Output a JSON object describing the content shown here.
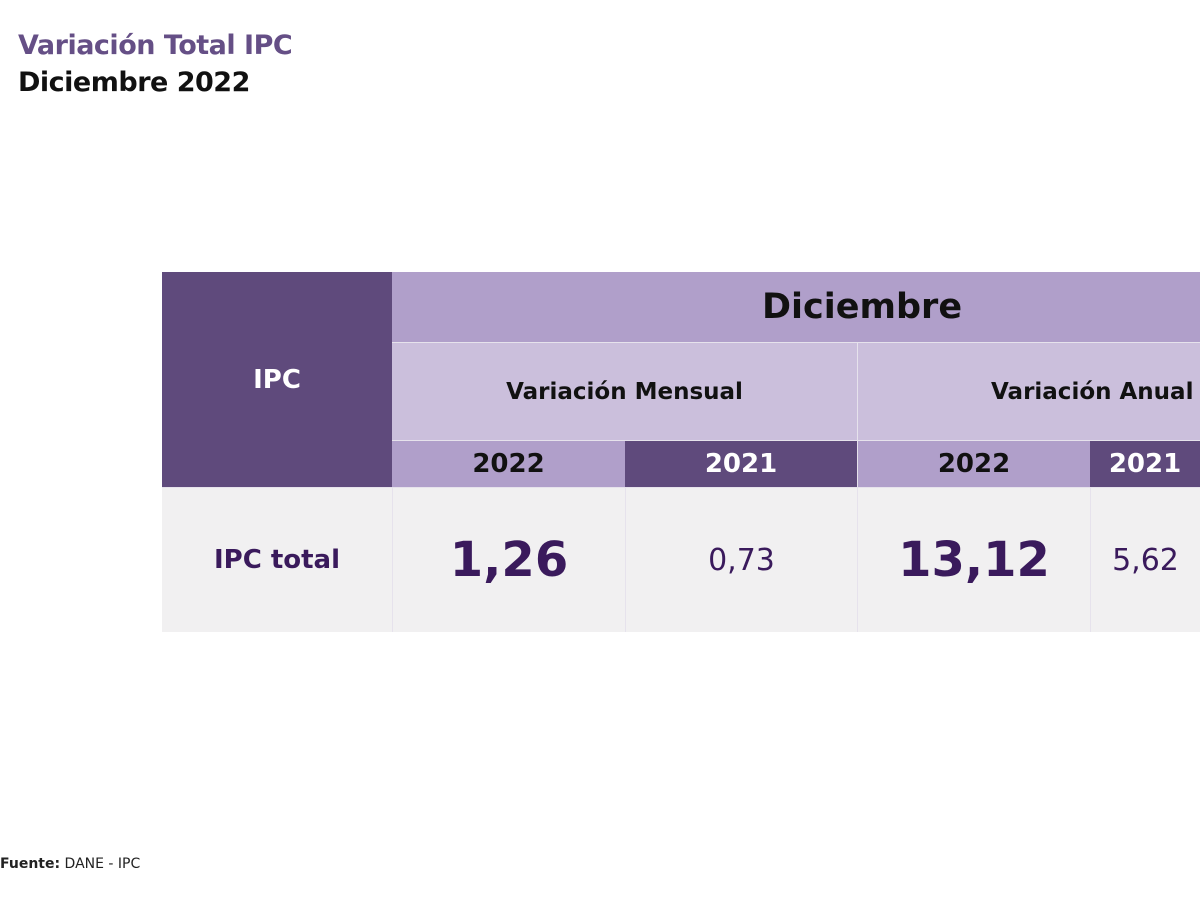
{
  "title": {
    "line1": "Variación Total IPC",
    "line2": "Diciembre 2022"
  },
  "table": {
    "row_header": "IPC",
    "group_header": "Diciembre",
    "sub_headers": [
      "Variación Mensual",
      "Variación Anual"
    ],
    "years": [
      "2022",
      "2021",
      "2022",
      "2021"
    ],
    "row": {
      "label": "IPC total",
      "values": [
        "1,26",
        "0,73",
        "13,12",
        "5,62"
      ]
    }
  },
  "source": {
    "label": "Fuente:",
    "text": "DANE - IPC"
  }
}
